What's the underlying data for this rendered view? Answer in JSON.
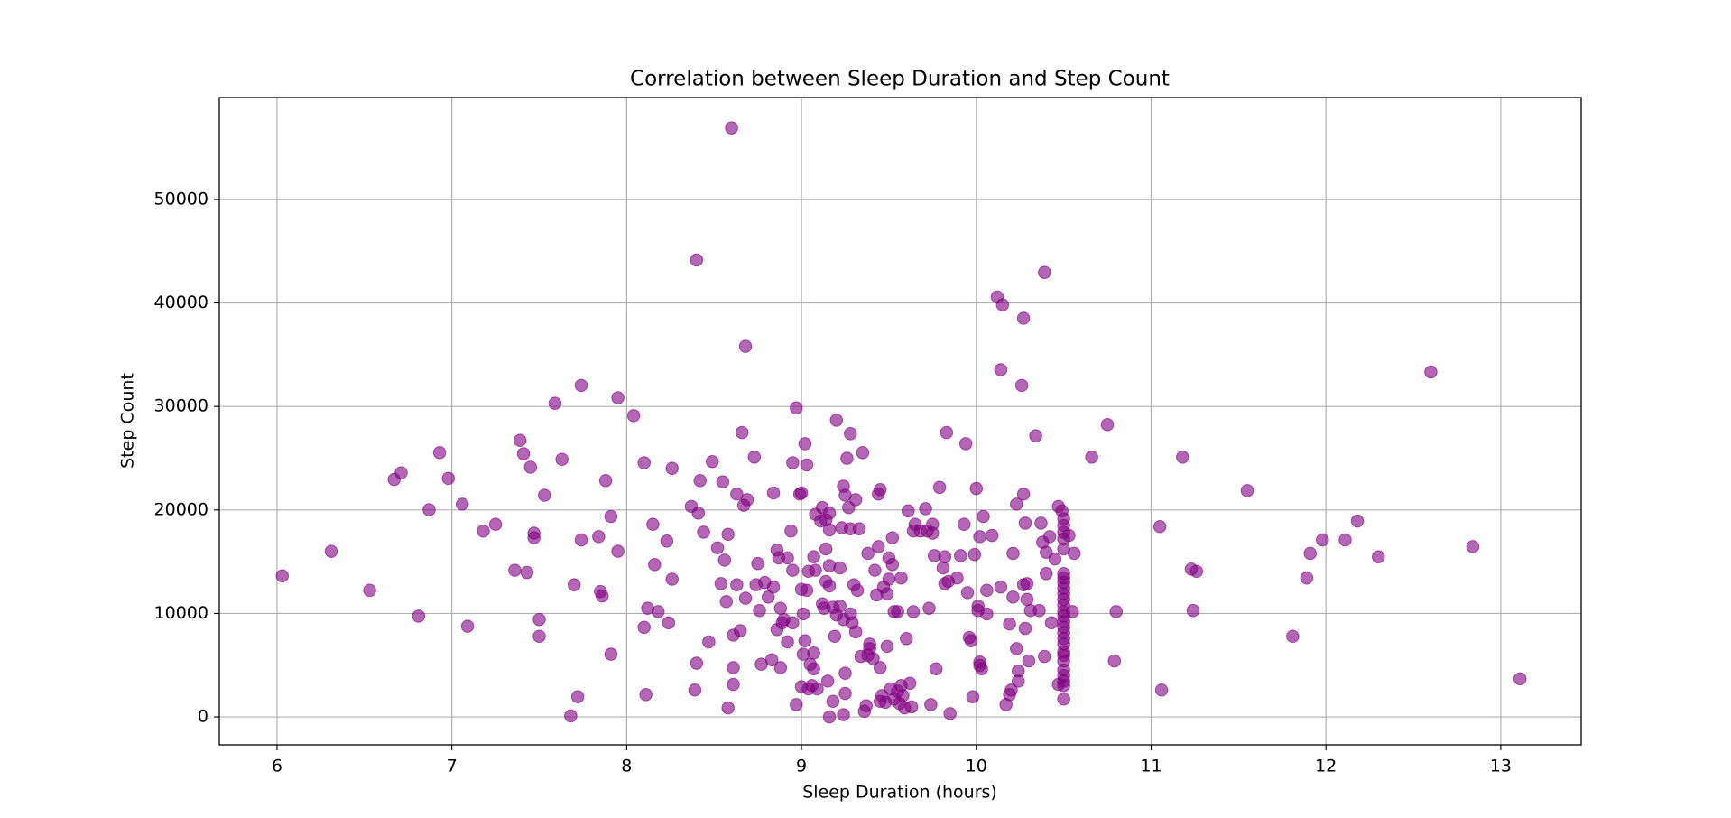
{
  "chart_data": {
    "type": "scatter",
    "title": "Correlation between Sleep Duration and Step Count",
    "x_label": "Sleep Duration (hours)",
    "y_label": "Step Count",
    "xlim": [
      5.67,
      13.46
    ],
    "ylim": [
      -2700,
      59850
    ],
    "xticks": [
      6,
      7,
      8,
      9,
      10,
      11,
      12,
      13
    ],
    "yticks": [
      0,
      10000,
      20000,
      30000,
      40000,
      50000
    ],
    "grid": true,
    "series": [
      {
        "color": "#800080",
        "x": [
          6.03,
          6.31,
          6.53,
          6.67,
          6.71,
          6.81,
          6.87,
          6.93,
          6.98,
          7.06,
          7.09,
          7.18,
          7.25,
          7.36,
          7.39,
          7.41,
          7.43,
          7.45,
          7.47,
          7.47,
          7.5,
          7.5,
          7.53,
          7.59,
          7.63,
          7.68,
          7.7,
          7.72,
          7.74,
          7.74,
          7.84,
          7.85,
          7.86,
          7.88,
          7.91,
          7.91,
          7.95,
          7.95,
          8.04,
          8.1,
          8.1,
          8.11,
          8.12,
          8.15,
          8.16,
          8.18,
          8.23,
          8.24,
          8.26,
          8.26,
          8.37,
          8.39,
          8.4,
          8.4,
          8.41,
          8.42,
          8.44,
          8.47,
          8.49,
          8.52,
          8.54,
          8.55,
          8.56,
          8.57,
          8.58,
          8.58,
          8.6,
          8.61,
          8.61,
          8.61,
          8.63,
          8.63,
          8.65,
          8.66,
          8.67,
          8.68,
          8.69,
          8.68,
          8.73,
          8.74,
          8.75,
          8.76,
          8.77,
          8.79,
          8.81,
          8.83,
          8.84,
          8.84,
          8.86,
          8.86,
          8.87,
          8.88,
          8.88,
          8.89,
          8.9,
          8.92,
          8.92,
          8.94,
          8.95,
          8.95,
          8.95,
          8.97,
          8.97,
          8.99,
          9.0,
          9.0,
          9.0,
          9.01,
          9.01,
          9.02,
          9.02,
          9.03,
          9.03,
          9.04,
          9.04,
          9.05,
          9.06,
          9.07,
          9.07,
          9.07,
          9.08,
          9.08,
          9.09,
          9.11,
          9.12,
          9.12,
          9.13,
          9.14,
          9.14,
          9.14,
          9.15,
          9.16,
          9.16,
          9.16,
          9.16,
          9.16,
          9.18,
          9.18,
          9.19,
          9.2,
          9.2,
          9.22,
          9.22,
          9.23,
          9.24,
          9.24,
          9.24,
          9.25,
          9.25,
          9.25,
          9.26,
          9.27,
          9.28,
          9.28,
          9.29,
          9.3,
          9.28,
          9.31,
          9.31,
          9.32,
          9.34,
          9.33,
          9.35,
          9.36,
          9.37,
          9.38,
          9.38,
          9.39,
          9.39,
          9.41,
          9.42,
          9.43,
          9.44,
          9.44,
          9.45,
          9.45,
          9.45,
          9.46,
          9.47,
          9.48,
          9.49,
          9.49,
          9.5,
          9.5,
          9.51,
          9.52,
          9.52,
          9.53,
          9.53,
          9.55,
          9.55,
          9.56,
          9.57,
          9.57,
          9.58,
          9.59,
          9.6,
          9.61,
          9.62,
          9.63,
          9.64,
          9.64,
          9.65,
          9.68,
          9.71,
          9.72,
          9.73,
          9.74,
          9.75,
          9.75,
          9.76,
          9.77,
          9.79,
          9.81,
          9.82,
          9.82,
          9.83,
          9.84,
          9.85,
          9.89,
          9.91,
          9.93,
          9.94,
          9.95,
          9.96,
          9.97,
          9.98,
          9.99,
          10.0,
          10.01,
          10.01,
          10.02,
          10.02,
          10.02,
          10.03,
          10.04,
          10.06,
          10.06,
          10.09,
          10.12,
          10.14,
          10.14,
          10.15,
          10.17,
          10.19,
          10.19,
          10.2,
          10.21,
          10.21,
          10.23,
          10.23,
          10.24,
          10.24,
          10.26,
          10.27,
          10.27,
          10.27,
          10.28,
          10.28,
          10.29,
          10.29,
          10.3,
          10.31,
          10.34,
          10.36,
          10.37,
          10.38,
          10.39,
          10.39,
          10.4,
          10.4,
          10.42,
          10.43,
          10.45,
          10.47,
          10.47,
          10.49,
          10.5,
          10.5,
          10.5,
          10.5,
          10.5,
          10.5,
          10.5,
          10.5,
          10.5,
          10.5,
          10.5,
          10.5,
          10.5,
          10.5,
          10.5,
          10.5,
          10.5,
          10.5,
          10.5,
          10.5,
          10.5,
          10.5,
          10.5,
          10.5,
          10.5,
          10.5,
          10.5,
          10.53,
          10.55,
          10.56,
          10.66,
          10.75,
          10.8,
          10.79,
          11.05,
          11.06,
          11.18,
          11.23,
          11.24,
          11.26,
          11.55,
          11.81,
          11.89,
          11.91,
          11.98,
          12.11,
          12.18,
          12.3,
          12.6,
          12.84,
          13.11
        ],
        "values": [
          13630,
          16000,
          12230,
          22940,
          23590,
          9740,
          20020,
          25540,
          23050,
          20560,
          8760,
          17960,
          18610,
          14170,
          26730,
          25430,
          13960,
          24130,
          17750,
          17310,
          9410,
          7790,
          21420,
          30300,
          24890,
          100,
          12770,
          1950,
          32030,
          17100,
          17420,
          12120,
          11690,
          22830,
          6060,
          19370,
          30840,
          16010,
          29110,
          24560,
          8660,
          2160,
          10500,
          18610,
          14720,
          10170,
          16990,
          9090,
          13310,
          24020,
          20340,
          2600,
          5190,
          44150,
          19690,
          22830,
          17850,
          7250,
          24670,
          16340,
          12880,
          22720,
          15150,
          11150,
          870,
          17640,
          56910,
          3140,
          4760,
          7900,
          12770,
          21530,
          8330,
          27480,
          20450,
          11470,
          20990,
          35810,
          25100,
          12770,
          14820,
          10280,
          5090,
          12990,
          11580,
          5520,
          12550,
          21640,
          8440,
          16120,
          15360,
          4760,
          10500,
          9090,
          9410,
          15360,
          7250,
          17960,
          14170,
          24560,
          9090,
          1190,
          29860,
          21530,
          21640,
          12330,
          2920,
          6060,
          9950,
          7360,
          26400,
          24350,
          12230,
          2710,
          14070,
          5090,
          3030,
          15470,
          4650,
          6170,
          19580,
          14170,
          2710,
          18930,
          10930,
          20230,
          10500,
          19040,
          13090,
          16230,
          3460,
          0,
          19690,
          18070,
          14610,
          12660,
          10600,
          1510,
          7790,
          28670,
          9850,
          10710,
          14390,
          18280,
          22290,
          9410,
          220,
          2270,
          4220,
          21420,
          24990,
          20230,
          18180,
          9950,
          9090,
          12770,
          27370,
          8220,
          20990,
          12230,
          5840,
          18180,
          25540,
          540,
          1080,
          5950,
          15800,
          7030,
          6600,
          5630,
          14170,
          11790,
          21530,
          16450,
          21960,
          4760,
          1510,
          2060,
          12550,
          1410,
          6820,
          11900,
          15360,
          13310,
          2710,
          17310,
          14720,
          1730,
          10170,
          10170,
          2490,
          1300,
          13420,
          3030,
          2060,
          870,
          7570,
          19910,
          3250,
          970,
          10170,
          17960,
          18610,
          17960,
          20120,
          17960,
          10500,
          1190,
          17750,
          18610,
          15580,
          4650,
          22180,
          14390,
          12880,
          15470,
          27480,
          13090,
          320,
          13420,
          15580,
          18610,
          26400,
          12010,
          7680,
          7360,
          1950,
          15690,
          22070,
          10710,
          10280,
          4980,
          5300,
          17420,
          4650,
          19370,
          9950,
          12230,
          17530,
          40580,
          33540,
          12550,
          39820,
          1190,
          8980,
          2160,
          2600,
          11580,
          15800,
          6600,
          20560,
          4440,
          3460,
          32030,
          12770,
          38520,
          21530,
          8550,
          18720,
          11360,
          12880,
          5410,
          10280,
          27160,
          10280,
          18720,
          16880,
          42950,
          5840,
          15910,
          13850,
          17420,
          9090,
          15260,
          20340,
          3140,
          19910,
          19150,
          18500,
          17850,
          17200,
          16230,
          13850,
          13420,
          12980,
          12440,
          11900,
          11360,
          10820,
          10170,
          9740,
          9200,
          8660,
          8120,
          7570,
          7030,
          6280,
          5950,
          5410,
          4540,
          4000,
          3460,
          3030,
          1730,
          17530,
          10170,
          15800,
          25100,
          28240,
          10170,
          5410,
          18390,
          2600,
          25100,
          14280,
          10280,
          14070,
          21860,
          7790,
          13420,
          15800,
          17100,
          17100,
          18930,
          15470,
          33320,
          16450,
          3680
        ]
      }
    ]
  }
}
